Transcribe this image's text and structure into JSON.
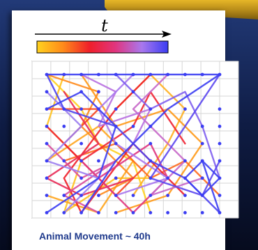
{
  "time_label": "t",
  "caption": "Animal Movement ~ 40h",
  "colorbar": [
    "#ffd21f",
    "#ff8a1a",
    "#f01f2a",
    "#e0357f",
    "#a978ee",
    "#3b3df2"
  ],
  "nodes": [
    [
      0,
      0
    ],
    [
      1,
      0
    ],
    [
      2,
      0
    ],
    [
      3,
      0
    ],
    [
      4,
      0
    ],
    [
      5,
      0
    ],
    [
      6,
      0
    ],
    [
      7,
      0
    ],
    [
      8,
      0
    ],
    [
      9,
      0
    ],
    [
      10,
      0
    ],
    [
      0,
      1
    ],
    [
      2,
      1
    ],
    [
      3,
      1
    ],
    [
      5,
      1
    ],
    [
      0,
      2
    ],
    [
      1,
      2
    ],
    [
      2,
      2
    ],
    [
      3,
      2
    ],
    [
      4,
      2
    ],
    [
      6,
      2
    ],
    [
      8,
      2
    ],
    [
      10,
      2
    ],
    [
      0,
      3
    ],
    [
      1,
      3
    ],
    [
      4,
      3
    ],
    [
      5,
      3
    ],
    [
      6,
      3
    ],
    [
      9,
      3
    ],
    [
      10,
      3
    ],
    [
      0,
      4
    ],
    [
      2,
      4
    ],
    [
      4,
      4
    ],
    [
      6,
      4
    ],
    [
      9,
      4
    ],
    [
      10,
      4
    ],
    [
      0,
      5
    ],
    [
      1,
      5
    ],
    [
      2,
      5
    ],
    [
      3,
      5
    ],
    [
      6,
      5
    ],
    [
      8,
      5
    ],
    [
      9,
      5
    ],
    [
      10,
      5
    ],
    [
      0,
      6
    ],
    [
      2,
      6
    ],
    [
      4,
      6
    ],
    [
      6,
      6
    ],
    [
      7,
      6
    ],
    [
      8,
      6
    ],
    [
      9,
      6
    ],
    [
      10,
      6
    ],
    [
      0,
      7
    ],
    [
      1,
      7
    ],
    [
      2,
      7
    ],
    [
      3,
      7
    ],
    [
      4,
      7
    ],
    [
      5,
      7
    ],
    [
      6,
      7
    ],
    [
      7,
      7
    ],
    [
      8,
      7
    ],
    [
      9,
      7
    ],
    [
      10,
      7
    ],
    [
      0,
      8
    ],
    [
      1,
      8
    ],
    [
      2,
      8
    ],
    [
      3,
      8
    ],
    [
      4,
      8
    ],
    [
      5,
      8
    ],
    [
      6,
      8
    ],
    [
      7,
      8
    ],
    [
      8,
      8
    ],
    [
      9,
      8
    ],
    [
      10,
      8
    ]
  ],
  "tracks": [
    {
      "color": "#ffd21f",
      "points": [
        [
          0,
          0
        ],
        [
          2,
          2
        ],
        [
          3,
          4
        ],
        [
          5,
          5
        ],
        [
          6,
          8
        ]
      ]
    },
    {
      "color": "#ffc21f",
      "points": [
        [
          1,
          0
        ],
        [
          0,
          3
        ],
        [
          2,
          5
        ],
        [
          1,
          8
        ],
        [
          4,
          6
        ],
        [
          6,
          6
        ]
      ]
    },
    {
      "color": "#ffb020",
      "points": [
        [
          4,
          2
        ],
        [
          6,
          0
        ],
        [
          8,
          2
        ],
        [
          7,
          4
        ],
        [
          5,
          7
        ]
      ]
    },
    {
      "color": "#ffa51d",
      "points": [
        [
          0,
          5
        ],
        [
          3,
          3
        ],
        [
          5,
          5
        ],
        [
          3,
          8
        ],
        [
          0,
          7
        ]
      ]
    },
    {
      "color": "#ff9a1a",
      "points": [
        [
          2,
          0
        ],
        [
          4,
          3
        ],
        [
          7,
          2
        ],
        [
          9,
          4
        ],
        [
          7,
          7
        ],
        [
          4,
          8
        ]
      ]
    },
    {
      "color": "#ff8a1a",
      "points": [
        [
          0,
          0
        ],
        [
          3,
          1
        ],
        [
          2,
          3
        ],
        [
          5,
          6
        ],
        [
          3,
          7
        ]
      ]
    },
    {
      "color": "#ff6a1d",
      "points": [
        [
          1,
          5
        ],
        [
          4,
          4
        ],
        [
          6,
          6
        ],
        [
          8,
          5
        ],
        [
          10,
          7
        ]
      ]
    },
    {
      "color": "#f84622",
      "points": [
        [
          0,
          2
        ],
        [
          3,
          2
        ],
        [
          1,
          4
        ],
        [
          4,
          7
        ],
        [
          6,
          5
        ]
      ]
    },
    {
      "color": "#f01f2a",
      "points": [
        [
          6,
          0
        ],
        [
          4,
          2
        ],
        [
          1,
          6
        ],
        [
          2,
          8
        ],
        [
          5,
          4
        ],
        [
          8,
          7
        ]
      ]
    },
    {
      "color": "#ef2333",
      "points": [
        [
          0,
          3
        ],
        [
          2,
          5
        ],
        [
          5,
          3
        ],
        [
          6,
          1
        ],
        [
          8,
          4
        ]
      ]
    },
    {
      "color": "#e82a55",
      "points": [
        [
          1,
          1
        ],
        [
          3,
          4
        ],
        [
          0,
          6
        ],
        [
          2,
          7
        ],
        [
          5,
          6
        ]
      ]
    },
    {
      "color": "#e0357f",
      "points": [
        [
          3,
          6
        ],
        [
          6,
          4
        ],
        [
          7,
          6
        ],
        [
          5,
          8
        ],
        [
          2,
          5
        ]
      ]
    },
    {
      "color": "#d84a9a",
      "points": [
        [
          0,
          4
        ],
        [
          2,
          6
        ],
        [
          4,
          5
        ],
        [
          1,
          7
        ],
        [
          3,
          8
        ]
      ]
    },
    {
      "color": "#c767c8",
      "points": [
        [
          7,
          0
        ],
        [
          5,
          2
        ],
        [
          8,
          5
        ],
        [
          6,
          7
        ],
        [
          9,
          6
        ]
      ]
    },
    {
      "color": "#b870e0",
      "points": [
        [
          2,
          0
        ],
        [
          4,
          1
        ],
        [
          3,
          3
        ],
        [
          6,
          2
        ],
        [
          5,
          4
        ]
      ]
    },
    {
      "color": "#a978ee",
      "points": [
        [
          5,
          0
        ],
        [
          3,
          2
        ],
        [
          4,
          4
        ],
        [
          7,
          6
        ],
        [
          4,
          7
        ]
      ]
    },
    {
      "color": "#9b7df0",
      "points": [
        [
          0,
          1
        ],
        [
          2,
          3
        ],
        [
          0,
          5
        ],
        [
          3,
          6
        ],
        [
          1,
          8
        ]
      ]
    },
    {
      "color": "#7f5ff0",
      "points": [
        [
          4,
          0
        ],
        [
          6,
          2
        ],
        [
          8,
          1
        ],
        [
          9,
          3
        ],
        [
          10,
          6
        ]
      ]
    },
    {
      "color": "#5c48f0",
      "points": [
        [
          10,
          0
        ],
        [
          8,
          3
        ],
        [
          6,
          6
        ],
        [
          9,
          7
        ],
        [
          10,
          5
        ]
      ]
    },
    {
      "color": "#4c42f0",
      "points": [
        [
          0,
          0
        ],
        [
          1,
          2
        ],
        [
          4,
          3
        ],
        [
          6,
          5
        ],
        [
          8,
          6
        ],
        [
          10,
          8
        ]
      ]
    },
    {
      "color": "#3b3df2",
      "points": [
        [
          0,
          0
        ],
        [
          10,
          0
        ],
        [
          7,
          2
        ],
        [
          4,
          5
        ],
        [
          2,
          8
        ]
      ]
    },
    {
      "color": "#3b3df2",
      "points": [
        [
          9,
          5
        ],
        [
          10,
          6
        ],
        [
          9,
          7
        ],
        [
          8,
          6
        ],
        [
          9,
          5
        ],
        [
          10,
          8
        ]
      ]
    },
    {
      "color": "#3b3df2",
      "points": [
        [
          0,
          2
        ],
        [
          2,
          1
        ],
        [
          4,
          3
        ],
        [
          3,
          6
        ],
        [
          0,
          8
        ]
      ]
    }
  ]
}
